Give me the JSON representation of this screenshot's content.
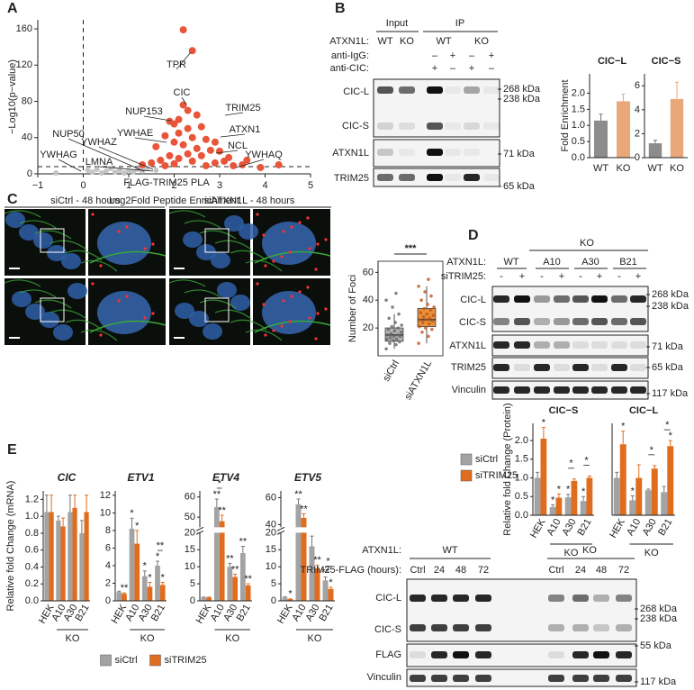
{
  "panel_labels": [
    "A",
    "B",
    "C",
    "D",
    "E",
    "F"
  ],
  "chart_data": [
    {
      "type": "scatter",
      "xlabel": "Log2Fold Peptide Enrichment",
      "ylabel": "−Log10(p−value)",
      "xlim": [
        -1,
        5
      ],
      "ylim": [
        0,
        170
      ],
      "xticks": [
        {
          "value": -1,
          "label": "−1"
        },
        0,
        1,
        2,
        3,
        4,
        5
      ],
      "yticks": [
        0,
        40,
        80,
        120,
        160
      ],
      "vlines": [
        0
      ],
      "hlines": [
        8
      ],
      "series": [
        {
          "color": "#c4c4c4",
          "x": [
            0.2,
            0.5,
            0.8,
            1.0,
            1.2,
            0.9,
            1.4,
            0.3,
            -0.6,
            0.1,
            1.1,
            0.6,
            1.6,
            0.4,
            1.3,
            0.7
          ],
          "y": [
            2,
            3,
            4,
            3,
            5,
            1,
            6,
            5,
            1,
            4,
            2,
            6,
            4,
            1,
            3,
            2
          ]
        },
        {
          "color": "#e8553a",
          "x": [
            2.2,
            2.4,
            2.2,
            2.3,
            2.5,
            2.1,
            1.9,
            2.0,
            2.6,
            2.3,
            2.1,
            1.8,
            2.4,
            2.7,
            2.9,
            2.0,
            2.2,
            1.6,
            2.5,
            2.8,
            3.0,
            2.3,
            1.9,
            2.6,
            3.2,
            2.1,
            1.7,
            2.4,
            3.1,
            2.9,
            1.5,
            2.0,
            3.5,
            3.6,
            3.9,
            4.3,
            1.3,
            2.7,
            1.8,
            3.3
          ],
          "y": [
            159,
            136,
            76,
            70,
            65,
            60,
            58,
            55,
            52,
            50,
            45,
            42,
            40,
            38,
            35,
            35,
            32,
            30,
            28,
            26,
            25,
            22,
            20,
            20,
            18,
            17,
            15,
            14,
            14,
            12,
            12,
            11,
            10,
            15,
            7,
            10,
            10,
            9,
            9,
            9
          ]
        }
      ],
      "annotations": [
        "TPR",
        "CIC",
        "TRIM25",
        "NUP153",
        "YWHAE",
        "ATXN1",
        "NCL",
        "YWHAQ",
        "NUP50",
        "YWHAZ",
        "YWHAG",
        "LMNA"
      ]
    },
    {
      "type": "bar",
      "title": "CIC−L",
      "ylabel": "Fold Enrichment",
      "categories": [
        "WT",
        "KO"
      ],
      "values": [
        1.15,
        1.75
      ],
      "errors": [
        0.2,
        0.22
      ],
      "colors": [
        "#8c8c8c",
        "#eaa87a"
      ],
      "ylim": [
        0,
        2.6
      ],
      "yticks": [
        {
          "value": 0,
          "label": "0.0"
        },
        0.5,
        {
          "value": 1,
          "label": "1.0"
        },
        1.5,
        {
          "value": 2,
          "label": "2.0"
        }
      ]
    },
    {
      "type": "bar",
      "title": "CIC−S",
      "categories": [
        "WT",
        "KO"
      ],
      "values": [
        1.2,
        4.9
      ],
      "errors": [
        0.25,
        1.4
      ],
      "colors": [
        "#8c8c8c",
        "#eaa87a"
      ],
      "ylim": [
        0,
        7
      ],
      "yticks": [
        0,
        2,
        4,
        6
      ]
    },
    {
      "type": "box",
      "ylabel": "Number of Foci",
      "categories": [
        "siCtrl",
        "siATXN1L"
      ],
      "colors": [
        "#b4b4b4",
        "#e8903a"
      ],
      "ylim": [
        0,
        68
      ],
      "yticks": [
        20,
        40,
        60
      ],
      "significance": "***",
      "boxes": [
        {
          "min": 5,
          "q1": 10.5,
          "median": 15,
          "q3": 20,
          "max": 30
        },
        {
          "min": 9,
          "q1": 21,
          "median": 26,
          "q3": 34,
          "max": 50
        }
      ],
      "points": [
        [
          5,
          8,
          9,
          10,
          11,
          12,
          12,
          13,
          14,
          14,
          15,
          15,
          16,
          17,
          18,
          19,
          20,
          21,
          22,
          24,
          27,
          30,
          35,
          40,
          45
        ],
        [
          9,
          14,
          17,
          19,
          20,
          21,
          23,
          24,
          25,
          26,
          26,
          27,
          28,
          29,
          30,
          31,
          33,
          34,
          35,
          37,
          40,
          43,
          46,
          50,
          55
        ]
      ]
    },
    {
      "type": "bar",
      "title": "CIC−S",
      "ylabel": "Relative fold Change (Protein)",
      "categories": [
        "HEK",
        "A10",
        "A30",
        "B21"
      ],
      "group_label": "KO",
      "rotate_labels": true,
      "legend": "left",
      "series": [
        {
          "name": "siCtrl",
          "color": "#a3a3a3",
          "values": [
            1.0,
            0.22,
            0.48,
            0.38
          ],
          "errors": [
            0.15,
            0.06,
            0.08,
            0.12
          ],
          "stars": [
            null,
            "*",
            "*",
            "*"
          ]
        },
        {
          "name": "siTRIM25",
          "color": "#e06d1e",
          "values": [
            2.05,
            0.47,
            0.92,
            1.0
          ],
          "errors": [
            0.3,
            0.1,
            0.05,
            0.05
          ],
          "stars": [
            "*",
            "*",
            null,
            null
          ]
        }
      ],
      "pair_stars": [
        null,
        null,
        "*",
        "*"
      ],
      "ylim": [
        0,
        2.46
      ],
      "yticks": [
        {
          "value": 0,
          "label": "0.0"
        },
        0.5,
        {
          "value": 1,
          "label": "1.0"
        },
        1.5,
        {
          "value": 2,
          "label": "2.0"
        }
      ]
    },
    {
      "type": "bar",
      "title": "CIC−L",
      "categories": [
        "HEK",
        "A10",
        "A30",
        "B21"
      ],
      "group_label": "KO",
      "rotate_labels": true,
      "series": [
        {
          "name": "siCtrl",
          "color": "#a3a3a3",
          "values": [
            1.0,
            0.4,
            0.67,
            0.62
          ],
          "errors": [
            0.15,
            0.12,
            0.03,
            0.15
          ],
          "stars": [
            null,
            "*",
            null,
            null
          ]
        },
        {
          "name": "siTRIM25",
          "color": "#e06d1e",
          "values": [
            1.9,
            1.0,
            1.25,
            1.85
          ],
          "errors": [
            0.35,
            0.35,
            0.08,
            0.15
          ],
          "stars": [
            "*",
            null,
            null,
            "*"
          ]
        }
      ],
      "pair_stars": [
        null,
        null,
        "*",
        "*"
      ],
      "ylim": [
        0,
        2.46
      ]
    },
    {
      "type": "bar",
      "title": "CIC",
      "ylabel": "Relative fold Change (mRNA)",
      "categories": [
        "HEK",
        "A10",
        "A30",
        "B21"
      ],
      "group_label": "KO",
      "rotate_labels": true,
      "series": [
        {
          "name": "siCtrl",
          "color": "#a3a3a3",
          "values": [
            1.05,
            0.95,
            1.05,
            0.8
          ],
          "errors": [
            0.2,
            0.05,
            0.2,
            0.15
          ]
        },
        {
          "name": "siTRIM25",
          "color": "#e06d1e",
          "values": [
            1.05,
            0.88,
            1.1,
            1.05
          ],
          "errors": [
            0.2,
            0.1,
            0.15,
            0.2
          ]
        }
      ],
      "ylim": [
        0,
        1.3
      ],
      "yticks": [
        {
          "value": 0,
          "label": "0.0"
        },
        0.2,
        0.4,
        0.6,
        0.8,
        {
          "value": 1,
          "label": "1.0"
        },
        1.2
      ]
    },
    {
      "type": "bar",
      "title": "ETV1",
      "categories": [
        "HEK",
        "A10",
        "A30",
        "B21"
      ],
      "group_label": "KO",
      "rotate_labels": true,
      "legend": "bottom",
      "series": [
        {
          "name": "siCtrl",
          "color": "#a3a3a3",
          "values": [
            1.0,
            8.2,
            2.8,
            4.0
          ],
          "errors": [
            0.1,
            1.2,
            0.6,
            0.5
          ],
          "stars": [
            null,
            "*",
            "*",
            "*"
          ]
        },
        {
          "name": "siTRIM25",
          "color": "#e06d1e",
          "values": [
            0.8,
            6.5,
            1.6,
            1.8
          ],
          "errors": [
            0.1,
            1.5,
            0.5,
            0.3
          ],
          "stars": [
            "**",
            "*",
            "*",
            "*"
          ]
        }
      ],
      "pair_stars": [
        null,
        null,
        null,
        "**"
      ],
      "ylim": [
        0,
        12.5
      ],
      "yticks": [
        0,
        2,
        4,
        6,
        8,
        10,
        12
      ]
    },
    {
      "type": "bar",
      "title": "ETV4",
      "categories": [
        "HEK",
        "A10",
        "A30",
        "B21"
      ],
      "group_label": "KO",
      "rotate_labels": true,
      "series": [
        {
          "name": "siCtrl",
          "color": "#a3a3a3",
          "values": [
            1,
            55,
            10,
            14
          ],
          "errors": [
            0.1,
            4,
            1,
            2
          ],
          "stars": [
            null,
            "**",
            "**",
            "**"
          ]
        },
        {
          "name": "siTRIM25",
          "color": "#e06d1e",
          "values": [
            1,
            48,
            7,
            4.5
          ],
          "errors": [
            0.1,
            3,
            0.8,
            0.5
          ],
          "stars": [
            null,
            "**",
            "**",
            "**"
          ]
        }
      ],
      "pair_stars": [
        null,
        "*",
        null,
        null
      ],
      "ylim": [
        0,
        63
      ],
      "ybreak": [
        20,
        45
      ],
      "yticks": [
        0,
        5,
        10,
        15,
        20,
        50,
        60
      ]
    },
    {
      "type": "bar",
      "title": "ETV5",
      "categories": [
        "HEK",
        "A10",
        "A30",
        "B21"
      ],
      "group_label": "KO",
      "rotate_labels": true,
      "series": [
        {
          "name": "siCtrl",
          "color": "#a3a3a3",
          "values": [
            1,
            55,
            16,
            6
          ],
          "errors": [
            0.2,
            4,
            3,
            1
          ],
          "stars": [
            null,
            "**",
            "*",
            "**"
          ]
        },
        {
          "name": "siTRIM25",
          "color": "#e06d1e",
          "values": [
            0.5,
            45,
            9.5,
            3.5
          ],
          "errors": [
            0.1,
            3,
            1,
            0.5
          ],
          "stars": [
            "*",
            "**",
            "**",
            "*"
          ]
        }
      ],
      "pair_stars": [
        null,
        null,
        null,
        "*"
      ],
      "ylim": [
        0,
        65
      ],
      "ybreak": [
        20,
        38
      ],
      "yticks": [
        0,
        5,
        10,
        15,
        20,
        40,
        60
      ]
    }
  ],
  "blot_b": {
    "headers": [
      "Input",
      "IP"
    ],
    "conditions": [
      {
        "label": "ATXN1L:",
        "lanes": [
          "WT",
          "KO",
          "WT",
          "KO"
        ]
      },
      {
        "label": "anti-IgG:",
        "lanes": [
          "–",
          "+",
          "–",
          "+"
        ]
      },
      {
        "label": "anti-CIC:",
        "lanes": [
          "+",
          "–",
          "+",
          "–"
        ]
      }
    ],
    "rows": [
      "CIC-L",
      "CIC-S",
      "ATXN1L",
      "TRIM25"
    ],
    "markers": [
      "268 kDa",
      "238 kDa",
      "71 kDa",
      "65 kDa"
    ]
  },
  "microscopy": {
    "title": "FLAG-TRIM25 PLA",
    "conditions": [
      "siCtrl - 48 hours",
      "siATXN1L - 48 hours"
    ]
  },
  "blot_d": {
    "header": "KO",
    "conditions": [
      {
        "label": "ATXN1L:",
        "lanes": [
          "WT",
          "A10",
          "A30",
          "B21"
        ]
      },
      {
        "label": "siTRIM25:",
        "lanes": [
          "-",
          "+",
          "-",
          "+",
          "-",
          "+",
          "-",
          "+"
        ]
      }
    ],
    "rows": [
      "CIC-L",
      "CIC-S",
      "ATXN1L",
      "TRIM25",
      "Vinculin"
    ],
    "markers": [
      "268 kDa",
      "238 kDa",
      "71 kDa",
      "65 kDa",
      "117 kDa"
    ]
  },
  "blot_f": {
    "conditions": [
      {
        "label": "ATXN1L:",
        "lanes": [
          "WT",
          "KO"
        ]
      },
      {
        "label": "TRIM25-FLAG (hours):",
        "lanes": [
          "Ctrl",
          "24",
          "48",
          "72",
          "Ctrl",
          "24",
          "48",
          "72"
        ]
      }
    ],
    "rows": [
      "CIC-L",
      "CIC-S",
      "FLAG",
      "Vinculin"
    ],
    "markers": [
      "268 kDa",
      "238 kDa",
      "55 kDa",
      "117 kDa"
    ]
  }
}
